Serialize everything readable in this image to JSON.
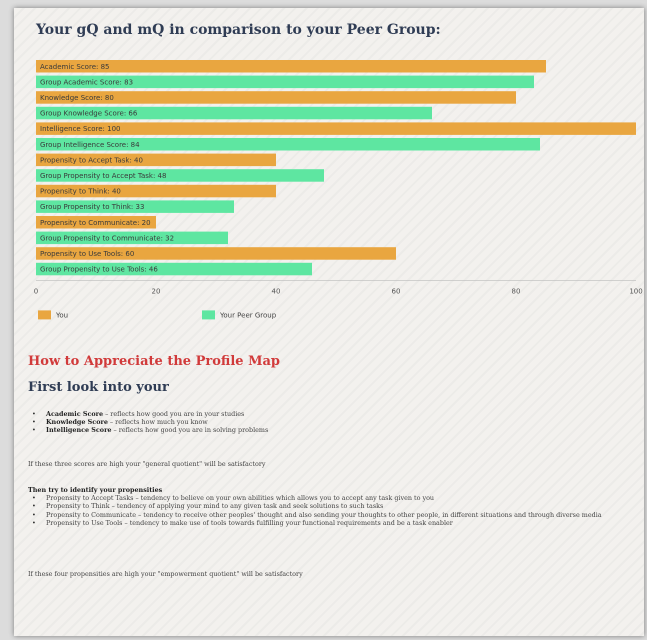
{
  "title": "Your gQ and mQ in comparison to your Peer Group:",
  "colors": {
    "you": "#e9a640",
    "peer": "#5ee6a1",
    "heading_red": "#d13a3a",
    "heading_blue": "#2f3c54"
  },
  "chart_data": {
    "type": "bar",
    "orientation": "horizontal",
    "xlim": [
      0,
      100
    ],
    "x_ticks": [
      "0",
      "20",
      "40",
      "60",
      "80",
      "100"
    ],
    "legend": [
      "You",
      "Your Peer Group"
    ],
    "legend_position": "bottom",
    "grid": false,
    "bars": [
      {
        "label": "Academic Score: 85",
        "value": 85,
        "series": "you"
      },
      {
        "label": "Group Academic Score: 83",
        "value": 83,
        "series": "peer"
      },
      {
        "label": "Knowledge Score: 80",
        "value": 80,
        "series": "you"
      },
      {
        "label": "Group Knowledge Score: 66",
        "value": 66,
        "series": "peer"
      },
      {
        "label": "Intelligence Score: 100",
        "value": 100,
        "series": "you"
      },
      {
        "label": "Group Intelligence Score: 84",
        "value": 84,
        "series": "peer"
      },
      {
        "label": "Propensity to Accept Task: 40",
        "value": 40,
        "series": "you"
      },
      {
        "label": "Group Propensity to Accept Task: 48",
        "value": 48,
        "series": "peer"
      },
      {
        "label": "Propensity to Think: 40",
        "value": 40,
        "series": "you"
      },
      {
        "label": "Group Propensity to Think: 33",
        "value": 33,
        "series": "peer"
      },
      {
        "label": "Propensity to Communicate: 20",
        "value": 20,
        "series": "you"
      },
      {
        "label": "Group Propensity to Communicate: 32",
        "value": 32,
        "series": "peer"
      },
      {
        "label": "Propensity to Use Tools: 60",
        "value": 60,
        "series": "you"
      },
      {
        "label": "Group Propensity to Use Tools: 46",
        "value": 46,
        "series": "peer"
      }
    ]
  },
  "section": {
    "heading": "How to Appreciate the Profile Map",
    "subheading": "First look into your",
    "scores": [
      {
        "name": "Academic Score",
        "desc": " – reflects how good you are in your studies"
      },
      {
        "name": "Knowledge Score",
        "desc": " – reflects how much you know"
      },
      {
        "name": "Intelligence Score",
        "desc": " – reflects how good you are in solving problems"
      }
    ],
    "general_note": "If these three scores are high your \"general quotient\" will be satisfactory",
    "propensities_heading": "Then try to identify your propensities",
    "propensities": [
      "Propensity to Accept Tasks – tendency to believe on your own abilities which allows you to accept any task given to you",
      "Propensity to Think – tendency of applying your mind to any given task and seek solutions to such tasks",
      "Propensity to Communicate – tendency to receive other peoples' thought and also sending your thoughts to other people, in different situations and through diverse media",
      "Propensity to Use Tools – tendency to make use of tools towards fulfilling your functional requirements and be a task enabler"
    ],
    "empowerment_note": "If these four propensities are high your \"empowerment quotient\" will be satisfactory"
  }
}
